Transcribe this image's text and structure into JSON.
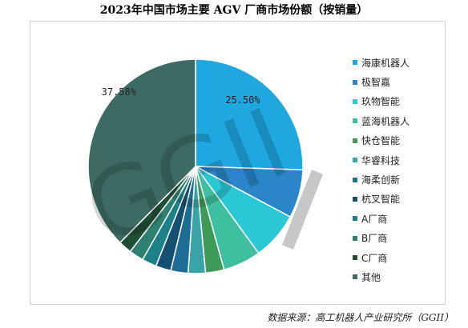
{
  "chart_data": {
    "type": "pie",
    "title": "2023年中国市场主要 AGV 厂商市场份额（按销量）",
    "start_angle_deg": 0,
    "direction": "clockwise",
    "legend_position": "right",
    "labeled_values": [
      "25.50%",
      "37.58%"
    ],
    "slices": [
      {
        "name": "海康机器人",
        "value": 25.5,
        "color": "#1fa7e0"
      },
      {
        "name": "极智嘉",
        "value": 7.3,
        "color": "#2a86c8"
      },
      {
        "name": "玖物智能",
        "value": 7.2,
        "color": "#2ac7d5"
      },
      {
        "name": "蓝海机器人",
        "value": 5.7,
        "color": "#3dbfa0"
      },
      {
        "name": "快仓智能",
        "value": 2.8,
        "color": "#3d9a57"
      },
      {
        "name": "华睿科技",
        "value": 2.6,
        "color": "#3aa3a6"
      },
      {
        "name": "海柔创新",
        "value": 2.6,
        "color": "#1d6d95"
      },
      {
        "name": "杭叉智能",
        "value": 2.3,
        "color": "#154f72"
      },
      {
        "name": "A厂商",
        "value": 2.2,
        "color": "#1e8088"
      },
      {
        "name": "B厂商",
        "value": 2.2,
        "color": "#2e8070"
      },
      {
        "name": "C厂商",
        "value": 2.0,
        "color": "#1f4e35"
      },
      {
        "name": "其他",
        "value": 37.58,
        "color": "#3d6b64"
      }
    ]
  },
  "watermark": "GGII",
  "source": "数据来源：高工机器人产业研究所（GGII）"
}
